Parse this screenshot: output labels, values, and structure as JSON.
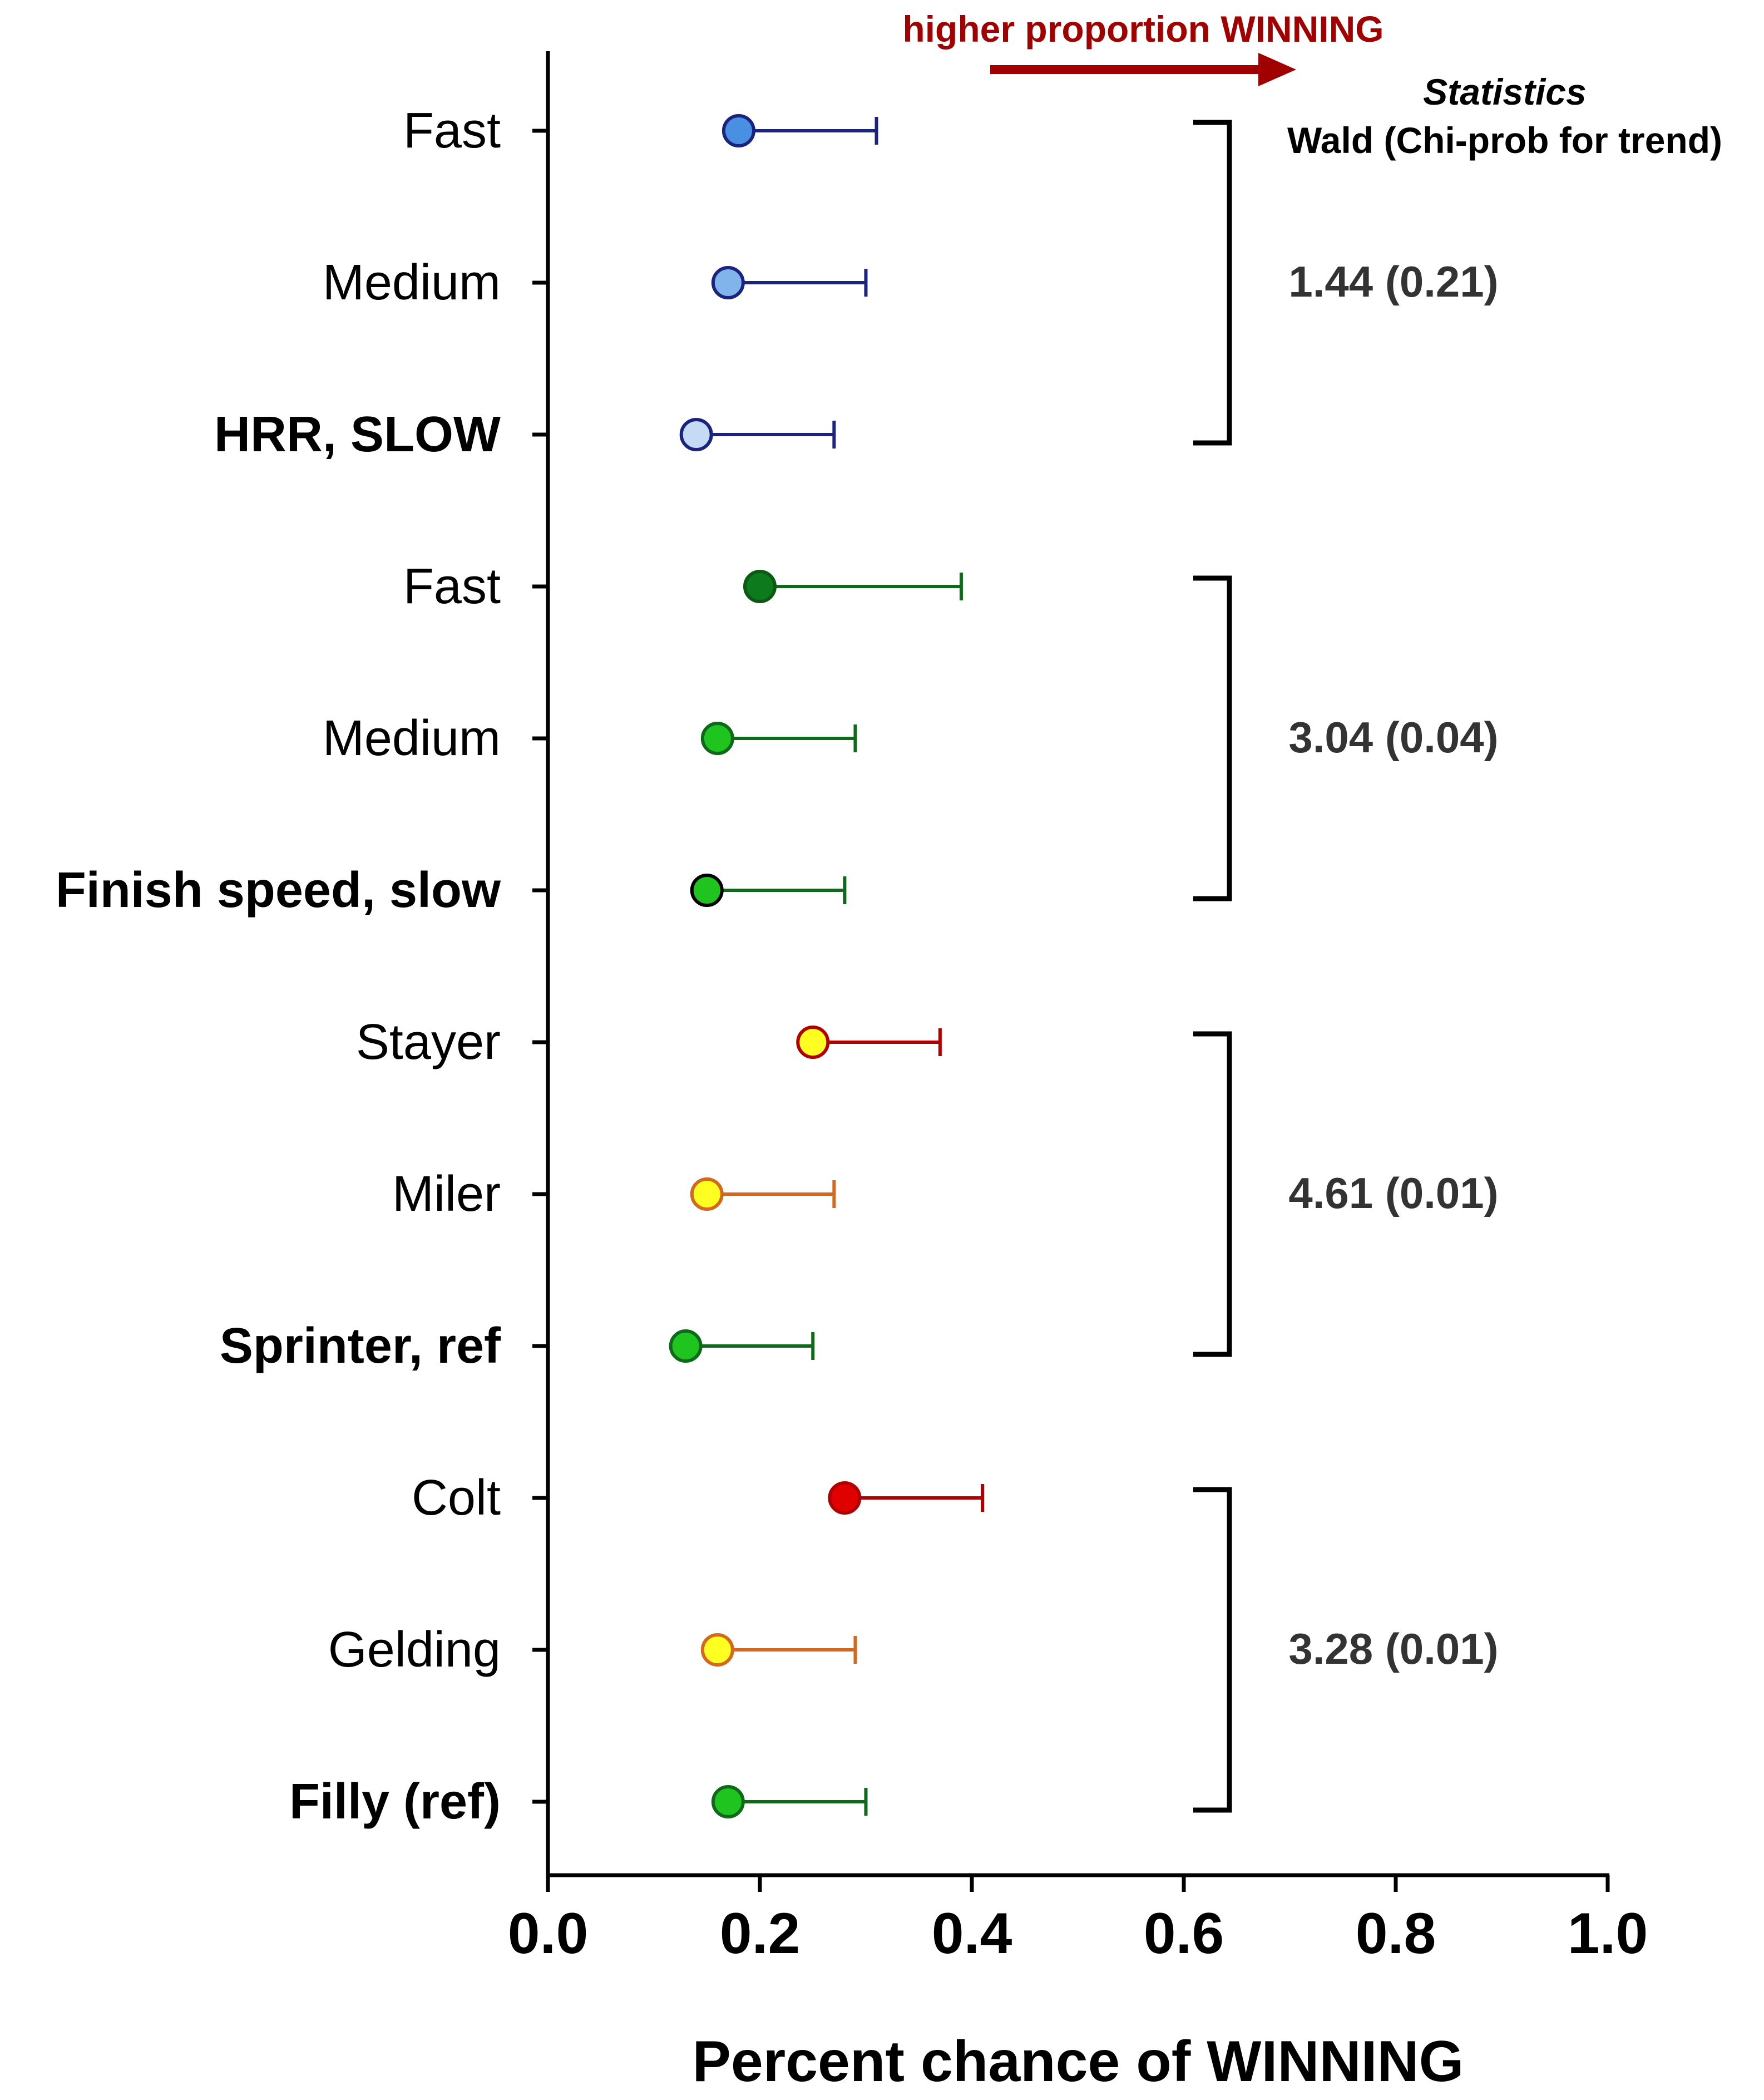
{
  "chart_data": {
    "type": "scatter",
    "subtype": "forest-plot",
    "title": "",
    "xlabel": "Percent chance of WINNING",
    "ylabel": "",
    "xlim": [
      0.0,
      1.0
    ],
    "x_ticks": [
      "0.0",
      "0.2",
      "0.4",
      "0.6",
      "0.8",
      "1.0"
    ],
    "grid": false,
    "legend": "none",
    "direction_annotation": "higher proportion WINNING",
    "stats_header": {
      "title": "Statistics",
      "subtitle": "Wald (Chi-prob for trend)"
    },
    "rows": [
      {
        "label": "Fast",
        "bold": false,
        "x": 0.18,
        "upper": 0.31,
        "fill": "#4a90e2",
        "stroke": "#1a237e",
        "line": "#1a237e"
      },
      {
        "label": "Medium",
        "bold": false,
        "x": 0.17,
        "upper": 0.3,
        "fill": "#82b4ec",
        "stroke": "#1a237e",
        "line": "#1a237e"
      },
      {
        "label": "HRR, SLOW",
        "bold": true,
        "x": 0.14,
        "upper": 0.27,
        "fill": "#c5daf4",
        "stroke": "#1a237e",
        "line": "#1a237e"
      },
      {
        "label": "Fast",
        "bold": false,
        "x": 0.2,
        "upper": 0.39,
        "fill": "#0e7a1e",
        "stroke": "#0a5a12",
        "line": "#0e6a1a"
      },
      {
        "label": "Medium",
        "bold": false,
        "x": 0.16,
        "upper": 0.29,
        "fill": "#1fc41f",
        "stroke": "#0e6a1a",
        "line": "#0e6a1a"
      },
      {
        "label": "Finish speed, slow",
        "bold": true,
        "x": 0.15,
        "upper": 0.28,
        "fill": "#1fc41f",
        "stroke": "#000000",
        "line": "#0e6a1a"
      },
      {
        "label": "Stayer",
        "bold": false,
        "x": 0.25,
        "upper": 0.37,
        "fill": "#ffff22",
        "stroke": "#b00000",
        "line": "#b00000"
      },
      {
        "label": "Miler",
        "bold": false,
        "x": 0.15,
        "upper": 0.27,
        "fill": "#ffff22",
        "stroke": "#d2691e",
        "line": "#d2691e"
      },
      {
        "label": "Sprinter, ref",
        "bold": true,
        "x": 0.13,
        "upper": 0.25,
        "fill": "#1fc41f",
        "stroke": "#0e6a1a",
        "line": "#0e6a1a"
      },
      {
        "label": "Colt",
        "bold": false,
        "x": 0.28,
        "upper": 0.41,
        "fill": "#e00000",
        "stroke": "#b00000",
        "line": "#b00000"
      },
      {
        "label": "Gelding",
        "bold": false,
        "x": 0.16,
        "upper": 0.29,
        "fill": "#ffff22",
        "stroke": "#d2691e",
        "line": "#d2691e"
      },
      {
        "label": "Filly (ref)",
        "bold": true,
        "x": 0.17,
        "upper": 0.3,
        "fill": "#1fc41f",
        "stroke": "#0e6a1a",
        "line": "#0e6a1a"
      }
    ],
    "groups": [
      {
        "rows": [
          0,
          2
        ],
        "stat": "1.44 (0.21)"
      },
      {
        "rows": [
          3,
          5
        ],
        "stat": "3.04 (0.04)"
      },
      {
        "rows": [
          6,
          8
        ],
        "stat": "4.61 (0.01)"
      },
      {
        "rows": [
          9,
          11
        ],
        "stat": "3.28 (0.01)"
      }
    ],
    "colors": {
      "axis": "#000000",
      "annotation": "#a00000",
      "stats_text": "#333333"
    }
  }
}
